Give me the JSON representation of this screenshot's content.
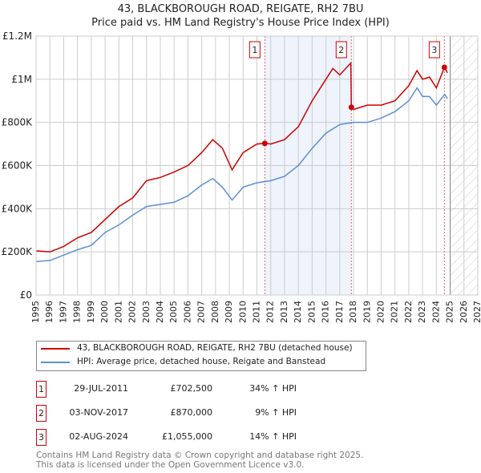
{
  "chart_data": {
    "type": "line",
    "title": "43, BLACKBOROUGH ROAD, REIGATE, RH2 7BU",
    "subtitle": "Price paid vs. HM Land Registry's House Price Index (HPI)",
    "xlim": [
      1995,
      2027
    ],
    "ylim": [
      0,
      1200000
    ],
    "x_ticks": [
      1995,
      1996,
      1997,
      1998,
      1999,
      2000,
      2001,
      2002,
      2003,
      2004,
      2005,
      2006,
      2007,
      2008,
      2009,
      2010,
      2011,
      2012,
      2013,
      2014,
      2015,
      2016,
      2017,
      2018,
      2019,
      2020,
      2021,
      2022,
      2023,
      2024,
      2025,
      2026,
      2027
    ],
    "y_ticks": [
      {
        "v": 0,
        "label": "£0"
      },
      {
        "v": 200000,
        "label": "£200K"
      },
      {
        "v": 400000,
        "label": "£400K"
      },
      {
        "v": 600000,
        "label": "£600K"
      },
      {
        "v": 800000,
        "label": "£800K"
      },
      {
        "v": 1000000,
        "label": "£1M"
      },
      {
        "v": 1200000,
        "label": "£1.2M"
      }
    ],
    "shaded_range": [
      2011.57,
      2017.84
    ],
    "forecast_from": 2025.0,
    "series": [
      {
        "name": "43, BLACKBOROUGH ROAD, REIGATE, RH2 7BU (detached house)",
        "color": "#cc0000",
        "x": [
          1995,
          1996,
          1997,
          1998,
          1999,
          2000,
          2001,
          2002,
          2003,
          2004,
          2005,
          2006,
          2007,
          2007.8,
          2008.5,
          2009.2,
          2010,
          2011,
          2011.57,
          2012,
          2013,
          2014,
          2015,
          2016,
          2016.5,
          2017,
          2017.8,
          2017.84,
          2018,
          2019,
          2020,
          2021,
          2022,
          2022.6,
          2023,
          2023.5,
          2024,
          2024.58,
          2024.8
        ],
        "y": [
          205000,
          200000,
          225000,
          265000,
          290000,
          350000,
          410000,
          450000,
          530000,
          545000,
          570000,
          600000,
          660000,
          720000,
          680000,
          580000,
          660000,
          700000,
          702500,
          700000,
          720000,
          780000,
          900000,
          1000000,
          1050000,
          1020000,
          1075000,
          870000,
          860000,
          880000,
          880000,
          900000,
          970000,
          1040000,
          1000000,
          1010000,
          960000,
          1055000,
          1030000
        ]
      },
      {
        "name": "HPI: Average price, detached house, Reigate and Banstead",
        "color": "#5b8fd4",
        "x": [
          1995,
          1996,
          1997,
          1998,
          1999,
          2000,
          2001,
          2002,
          2003,
          2004,
          2005,
          2006,
          2007,
          2007.8,
          2008.5,
          2009.2,
          2010,
          2011,
          2012,
          2013,
          2014,
          2015,
          2016,
          2017,
          2018,
          2019,
          2020,
          2021,
          2022,
          2022.6,
          2023,
          2023.5,
          2024,
          2024.6,
          2024.8
        ],
        "y": [
          155000,
          160000,
          185000,
          210000,
          230000,
          290000,
          325000,
          370000,
          410000,
          420000,
          430000,
          460000,
          510000,
          540000,
          500000,
          440000,
          500000,
          520000,
          530000,
          550000,
          600000,
          680000,
          750000,
          790000,
          800000,
          800000,
          820000,
          850000,
          900000,
          960000,
          920000,
          920000,
          880000,
          930000,
          910000
        ]
      }
    ],
    "sales": [
      {
        "label": "1",
        "x": 2011.57,
        "y": 702500,
        "date": "29-JUL-2011",
        "price": "£702,500",
        "hpi": "34% ↑ HPI"
      },
      {
        "label": "2",
        "x": 2017.84,
        "y": 870000,
        "date": "03-NOV-2017",
        "price": "£870,000",
        "hpi": "9% ↑ HPI"
      },
      {
        "label": "3",
        "x": 2024.58,
        "y": 1055000,
        "date": "02-AUG-2024",
        "price": "£1,055,000",
        "hpi": "14% ↑ HPI"
      }
    ]
  },
  "legend": {
    "red": "43, BLACKBOROUGH ROAD, REIGATE, RH2 7BU (detached house)",
    "blue": "HPI: Average price, detached house, Reigate and Banstead"
  },
  "footer": {
    "line1": "Contains HM Land Registry data © Crown copyright and database right 2025.",
    "line2": "This data is licensed under the Open Government Licence v3.0."
  }
}
